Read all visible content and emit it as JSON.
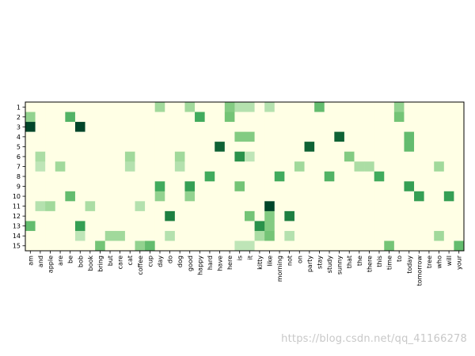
{
  "watermark": "https://blog.csdn.net/qq_41166278",
  "chart_data": {
    "type": "heatmap",
    "title": "",
    "xlabel": "",
    "ylabel": "",
    "colormap": "Greens",
    "grid": false,
    "colors": {
      "low": "#ffffe5",
      "high": "#004529",
      "axis": "#000000"
    },
    "y_categories": [
      "1",
      "2",
      "3",
      "4",
      "5",
      "6",
      "7",
      "8",
      "9",
      "10",
      "11",
      "12",
      "13",
      "14",
      "15"
    ],
    "x_categories": [
      "am",
      "and",
      "apple",
      "are",
      "be",
      "bob",
      "book",
      "bring",
      "but",
      "care",
      "cat",
      "coffee",
      "cup",
      "day",
      "do",
      "dog",
      "good",
      "happy",
      "hard",
      "have",
      "here",
      "is",
      "it",
      "kitty",
      "like",
      "morning",
      "not",
      "on",
      "party",
      "stay",
      "study",
      "sunny",
      "that",
      "the",
      "there",
      "this",
      "time",
      "to",
      "today",
      "tomorrow",
      "tree",
      "who",
      "will",
      "your"
    ],
    "values": [
      [
        0,
        0,
        0,
        0,
        0,
        0,
        0,
        0,
        0,
        0,
        0,
        0,
        0,
        0.45,
        0,
        0,
        0.45,
        0,
        0,
        0,
        0.55,
        0.35,
        0.35,
        0,
        0.35,
        0,
        0,
        0,
        0,
        0.65,
        0,
        0,
        0,
        0,
        0,
        0,
        0,
        0.5,
        0,
        0,
        0,
        0,
        0,
        0
      ],
      [
        0.5,
        0,
        0,
        0,
        0.7,
        0,
        0,
        0,
        0,
        0,
        0,
        0,
        0,
        0,
        0,
        0,
        0,
        0.75,
        0,
        0,
        0.6,
        0,
        0,
        0,
        0,
        0,
        0,
        0,
        0,
        0,
        0,
        0,
        0,
        0,
        0,
        0,
        0,
        0.6,
        0,
        0,
        0,
        0,
        0,
        0
      ],
      [
        1.0,
        0,
        0,
        0,
        0,
        1.0,
        0,
        0,
        0,
        0,
        0,
        0,
        0,
        0,
        0,
        0,
        0,
        0,
        0,
        0,
        0,
        0,
        0,
        0,
        0,
        0,
        0,
        0,
        0,
        0,
        0,
        0,
        0,
        0,
        0,
        0,
        0,
        0,
        0,
        0,
        0,
        0,
        0,
        0
      ],
      [
        0,
        0,
        0,
        0,
        0,
        0,
        0,
        0,
        0,
        0,
        0,
        0,
        0,
        0,
        0,
        0,
        0,
        0,
        0,
        0,
        0,
        0.55,
        0.55,
        0,
        0,
        0,
        0,
        0,
        0,
        0,
        0,
        0.95,
        0,
        0,
        0,
        0,
        0,
        0,
        0.65,
        0,
        0,
        0,
        0,
        0
      ],
      [
        0,
        0,
        0,
        0,
        0,
        0,
        0,
        0,
        0,
        0,
        0,
        0,
        0,
        0,
        0,
        0,
        0,
        0,
        0,
        0.95,
        0,
        0,
        0,
        0,
        0,
        0,
        0,
        0,
        0.95,
        0,
        0,
        0,
        0,
        0,
        0,
        0,
        0,
        0,
        0.65,
        0,
        0,
        0,
        0,
        0
      ],
      [
        0,
        0.4,
        0,
        0,
        0,
        0,
        0,
        0,
        0,
        0,
        0.45,
        0,
        0,
        0,
        0,
        0.45,
        0,
        0,
        0,
        0,
        0,
        0.85,
        0.3,
        0,
        0,
        0,
        0,
        0,
        0,
        0,
        0,
        0,
        0.55,
        0,
        0,
        0,
        0,
        0,
        0,
        0,
        0,
        0,
        0,
        0
      ],
      [
        0,
        0.3,
        0,
        0.45,
        0,
        0,
        0,
        0,
        0,
        0,
        0.35,
        0,
        0,
        0,
        0,
        0.35,
        0,
        0,
        0,
        0,
        0,
        0,
        0,
        0,
        0,
        0,
        0,
        0.45,
        0,
        0,
        0,
        0,
        0,
        0.4,
        0.4,
        0,
        0,
        0,
        0,
        0,
        0,
        0.45,
        0,
        0
      ],
      [
        0,
        0,
        0,
        0,
        0,
        0,
        0,
        0,
        0,
        0,
        0,
        0,
        0,
        0,
        0,
        0,
        0,
        0,
        0.75,
        0,
        0,
        0,
        0,
        0,
        0,
        0.75,
        0,
        0,
        0,
        0,
        0.7,
        0,
        0,
        0,
        0,
        0.75,
        0,
        0,
        0,
        0,
        0,
        0,
        0,
        0
      ],
      [
        0,
        0,
        0,
        0,
        0,
        0,
        0,
        0,
        0,
        0,
        0,
        0,
        0,
        0.75,
        0,
        0,
        0.8,
        0,
        0,
        0,
        0,
        0.6,
        0,
        0,
        0,
        0,
        0,
        0,
        0,
        0,
        0,
        0,
        0,
        0,
        0,
        0,
        0,
        0,
        0.8,
        0,
        0,
        0,
        0,
        0
      ],
      [
        0,
        0,
        0,
        0,
        0.65,
        0,
        0,
        0,
        0,
        0,
        0,
        0,
        0,
        0.5,
        0,
        0,
        0.5,
        0,
        0,
        0,
        0,
        0,
        0,
        0,
        0,
        0,
        0,
        0,
        0,
        0,
        0,
        0,
        0,
        0,
        0,
        0,
        0,
        0,
        0,
        0.8,
        0,
        0,
        0.8,
        0
      ],
      [
        0,
        0.35,
        0.45,
        0,
        0,
        0,
        0.4,
        0,
        0,
        0,
        0,
        0.35,
        0,
        0,
        0,
        0,
        0,
        0,
        0,
        0,
        0,
        0,
        0,
        0,
        1.0,
        0,
        0,
        0,
        0,
        0,
        0,
        0,
        0,
        0,
        0,
        0,
        0,
        0,
        0,
        0,
        0,
        0,
        0,
        0
      ],
      [
        0,
        0,
        0,
        0,
        0,
        0,
        0,
        0,
        0,
        0,
        0,
        0,
        0,
        0,
        0.9,
        0,
        0,
        0,
        0,
        0,
        0,
        0,
        0.6,
        0,
        0.55,
        0,
        0.9,
        0,
        0,
        0,
        0,
        0,
        0,
        0,
        0,
        0,
        0,
        0,
        0,
        0,
        0,
        0,
        0,
        0
      ],
      [
        0.65,
        0,
        0,
        0,
        0,
        0.8,
        0,
        0,
        0,
        0,
        0,
        0,
        0,
        0,
        0,
        0,
        0,
        0,
        0,
        0,
        0,
        0,
        0,
        0.85,
        0.55,
        0,
        0,
        0,
        0,
        0,
        0,
        0,
        0,
        0,
        0,
        0,
        0,
        0,
        0,
        0,
        0,
        0,
        0,
        0
      ],
      [
        0,
        0,
        0,
        0,
        0,
        0.3,
        0,
        0,
        0.45,
        0.45,
        0,
        0,
        0,
        0,
        0.35,
        0,
        0,
        0,
        0,
        0,
        0,
        0,
        0,
        0.4,
        0.6,
        0,
        0.35,
        0,
        0,
        0,
        0,
        0,
        0,
        0,
        0,
        0,
        0,
        0,
        0,
        0,
        0,
        0.45,
        0,
        0
      ],
      [
        0,
        0,
        0,
        0,
        0,
        0,
        0,
        0.6,
        0,
        0,
        0,
        0.5,
        0.65,
        0,
        0,
        0,
        0,
        0,
        0,
        0,
        0,
        0.3,
        0.3,
        0,
        0,
        0,
        0,
        0,
        0,
        0,
        0,
        0,
        0,
        0,
        0,
        0,
        0.6,
        0,
        0,
        0,
        0,
        0,
        0,
        0.65
      ]
    ]
  }
}
